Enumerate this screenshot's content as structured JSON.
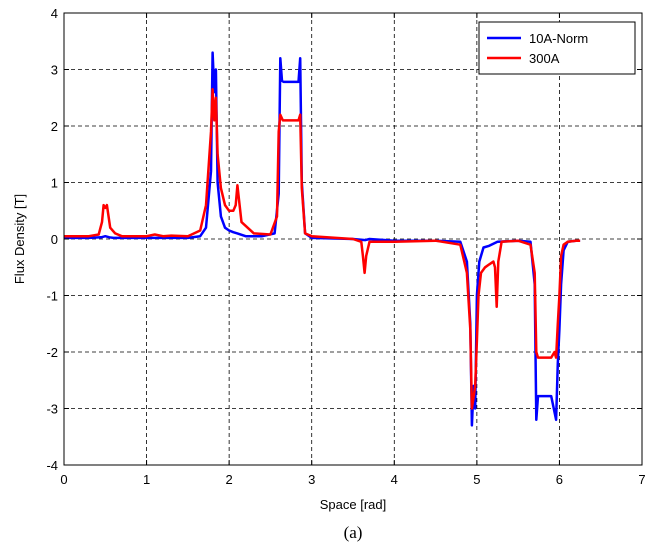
{
  "chart_data": {
    "type": "line",
    "xlabel": "Space [rad]",
    "ylabel": "Flux Density [T]",
    "caption": "(a)",
    "xlim": [
      0,
      7
    ],
    "ylim": [
      -4,
      4
    ],
    "xticks": [
      0,
      1,
      2,
      3,
      4,
      5,
      6,
      7
    ],
    "yticks": [
      -4,
      -3,
      -2,
      -1,
      0,
      1,
      2,
      3,
      4
    ],
    "grid": true,
    "grid_style": "dashed",
    "legend_position": "top-right",
    "series": [
      {
        "name": "10A-Norm",
        "color": "#0000ff",
        "x": [
          0,
          0.3,
          0.45,
          0.5,
          0.55,
          0.6,
          1.0,
          1.5,
          1.65,
          1.72,
          1.78,
          1.8,
          1.82,
          1.84,
          1.86,
          1.9,
          1.95,
          2.0,
          2.05,
          2.1,
          2.2,
          2.4,
          2.55,
          2.6,
          2.62,
          2.64,
          2.66,
          2.7,
          2.8,
          2.84,
          2.86,
          2.88,
          2.92,
          3.0,
          3.5,
          3.65,
          3.7,
          4.0,
          4.5,
          4.8,
          4.88,
          4.92,
          4.94,
          4.96,
          4.98,
          5.0,
          5.03,
          5.08,
          5.15,
          5.25,
          5.5,
          5.65,
          5.7,
          5.72,
          5.74,
          5.76,
          5.8,
          5.9,
          5.96,
          5.98,
          6.0,
          6.02,
          6.05,
          6.1,
          6.2,
          6.25
        ],
        "y": [
          0.02,
          0.02,
          0.03,
          0.05,
          0.03,
          0.02,
          0.02,
          0.02,
          0.05,
          0.2,
          1.2,
          3.3,
          2.6,
          3.0,
          1.0,
          0.4,
          0.2,
          0.15,
          0.12,
          0.1,
          0.05,
          0.05,
          0.1,
          0.8,
          3.2,
          2.8,
          2.78,
          2.78,
          2.78,
          2.78,
          3.2,
          1.0,
          0.1,
          0.02,
          0.0,
          -0.02,
          0.0,
          -0.03,
          -0.03,
          -0.05,
          -0.4,
          -1.5,
          -3.3,
          -2.6,
          -3.0,
          -1.0,
          -0.4,
          -0.15,
          -0.12,
          -0.05,
          -0.03,
          -0.05,
          -0.8,
          -3.2,
          -2.78,
          -2.78,
          -2.78,
          -2.78,
          -3.2,
          -2.2,
          -1.6,
          -0.8,
          -0.2,
          -0.05,
          -0.03,
          -0.03
        ]
      },
      {
        "name": "300A",
        "color": "#ff0000",
        "x": [
          0,
          0.3,
          0.42,
          0.46,
          0.48,
          0.5,
          0.52,
          0.56,
          0.62,
          0.7,
          1.0,
          1.1,
          1.2,
          1.3,
          1.5,
          1.65,
          1.72,
          1.78,
          1.8,
          1.82,
          1.84,
          1.86,
          1.9,
          1.95,
          2.0,
          2.05,
          2.08,
          2.1,
          2.15,
          2.3,
          2.5,
          2.58,
          2.6,
          2.62,
          2.65,
          2.7,
          2.8,
          2.84,
          2.86,
          2.88,
          2.92,
          3.0,
          3.5,
          3.6,
          3.62,
          3.64,
          3.66,
          3.7,
          4.0,
          4.5,
          4.8,
          4.88,
          4.92,
          4.94,
          4.96,
          4.98,
          5.0,
          5.02,
          5.05,
          5.1,
          5.15,
          5.2,
          5.22,
          5.24,
          5.26,
          5.3,
          5.5,
          5.65,
          5.7,
          5.72,
          5.74,
          5.78,
          5.9,
          5.94,
          5.96,
          5.98,
          6.0,
          6.02,
          6.05,
          6.1,
          6.2,
          6.25
        ],
        "y": [
          0.05,
          0.05,
          0.08,
          0.3,
          0.6,
          0.55,
          0.6,
          0.2,
          0.1,
          0.05,
          0.05,
          0.08,
          0.05,
          0.06,
          0.05,
          0.15,
          0.6,
          1.9,
          2.65,
          2.1,
          2.5,
          1.5,
          0.9,
          0.6,
          0.5,
          0.5,
          0.6,
          0.95,
          0.3,
          0.1,
          0.08,
          0.4,
          1.9,
          2.2,
          2.1,
          2.1,
          2.1,
          2.1,
          2.2,
          0.9,
          0.1,
          0.05,
          0.0,
          -0.05,
          -0.3,
          -0.6,
          -0.3,
          -0.05,
          -0.05,
          -0.03,
          -0.1,
          -0.6,
          -1.6,
          -3.0,
          -2.8,
          -2.6,
          -1.8,
          -1.0,
          -0.6,
          -0.5,
          -0.45,
          -0.4,
          -0.5,
          -1.2,
          -0.4,
          -0.05,
          -0.03,
          -0.1,
          -0.6,
          -2.0,
          -2.1,
          -2.1,
          -2.1,
          -2.0,
          -2.1,
          -1.5,
          -1.0,
          -0.3,
          -0.1,
          -0.05,
          -0.03,
          -0.03
        ]
      }
    ]
  }
}
